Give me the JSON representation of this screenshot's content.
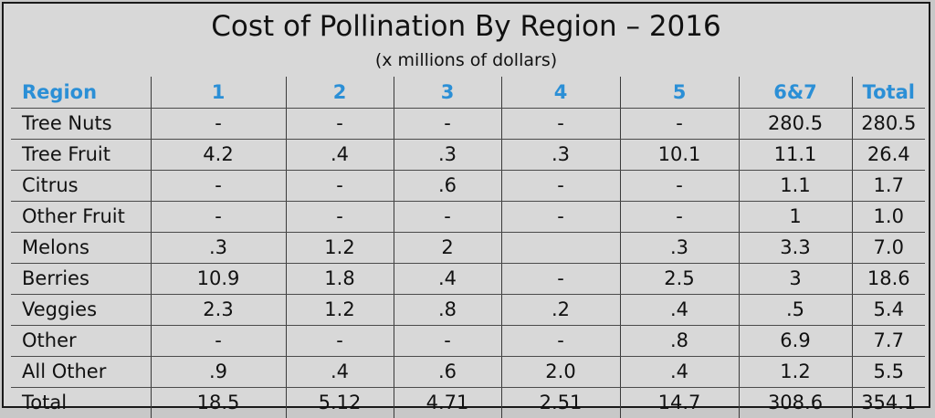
{
  "chart_data": {
    "type": "table",
    "title": "Cost of Pollination By Region – 2016",
    "subtitle": "(x millions of dollars)",
    "columns": [
      "Region",
      "1",
      "2",
      "3",
      "4",
      "5",
      "6&7",
      "Total"
    ],
    "rows": [
      [
        "Tree Nuts",
        "-",
        "-",
        "-",
        "-",
        "-",
        "280.5",
        "280.5"
      ],
      [
        "Tree Fruit",
        "4.2",
        ".4",
        ".3",
        ".3",
        "10.1",
        "11.1",
        "26.4"
      ],
      [
        "Citrus",
        "-",
        "-",
        ".6",
        "-",
        "-",
        "1.1",
        "1.7"
      ],
      [
        "Other Fruit",
        "-",
        "-",
        "-",
        "-",
        "-",
        "1",
        "1.0"
      ],
      [
        "Melons",
        ".3",
        "1.2",
        "2",
        "",
        ".3",
        "3.3",
        "7.0"
      ],
      [
        "Berries",
        "10.9",
        "1.8",
        ".4",
        "-",
        "2.5",
        "3",
        "18.6"
      ],
      [
        "Veggies",
        "2.3",
        "1.2",
        ".8",
        ".2",
        ".4",
        ".5",
        "5.4"
      ],
      [
        "Other",
        "-",
        "-",
        "-",
        "-",
        ".8",
        "6.9",
        "7.7"
      ],
      [
        "All Other",
        ".9",
        ".4",
        ".6",
        "2.0",
        ".4",
        "1.2",
        "5.5"
      ],
      [
        "Total",
        "18.5",
        "5.12",
        "4.71",
        "2.51",
        "14.7",
        "308.6",
        "354.1"
      ]
    ],
    "header_color": "#2b8fd6"
  }
}
